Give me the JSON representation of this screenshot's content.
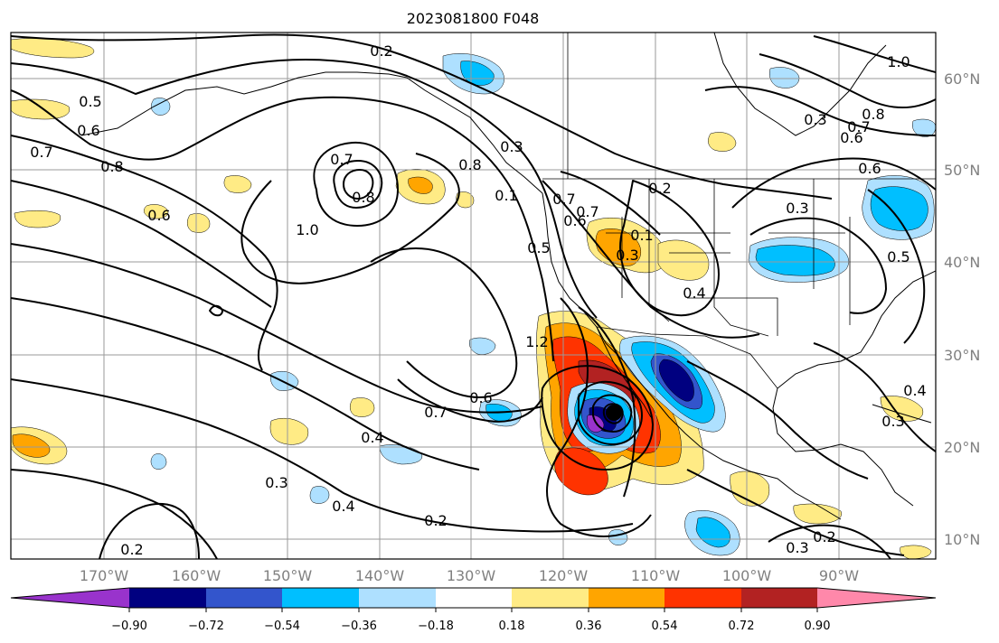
{
  "title": "2023081800 F048",
  "map": {
    "lon_range": [
      -180,
      -80
    ],
    "lat_range": [
      8,
      66
    ],
    "lon_labels": [
      "170°W",
      "160°W",
      "150°W",
      "140°W",
      "130°W",
      "120°W",
      "110°W",
      "100°W",
      "90°W"
    ],
    "lat_labels": [
      "60°N",
      "50°N",
      "40°N",
      "30°N",
      "20°N",
      "10°N"
    ],
    "grid": true,
    "storm_center": {
      "lon": -115,
      "lat": 23.5
    }
  },
  "contour_labels": [
    "0.2",
    "0.7",
    "0.5",
    "0.6",
    "0.8",
    "0.6",
    "0.7",
    "0.8",
    "1.0",
    "0.8",
    "0.3",
    "0.1",
    "0.5",
    "0.7",
    "0.6",
    "0.7",
    "0.2",
    "0.1",
    "0.3",
    "0.4",
    "0.3",
    "0.6",
    "0.7",
    "0.8",
    "0.6",
    "0.5",
    "0.4",
    "0.3",
    "1.2",
    "0.7",
    "0.6",
    "0.4",
    "0.4",
    "0.2",
    "0.3",
    "0.2",
    "0.3",
    "0.2",
    "0.3",
    "1.0"
  ],
  "colorbar": {
    "colors": [
      "#9933cc",
      "#000080",
      "#3355cc",
      "#00bfff",
      "#aee0ff",
      "#ffffff",
      "#ffeb85",
      "#ffa500",
      "#ff3300",
      "#b22222",
      "#ff88aa"
    ],
    "ticks": [
      "−0.90",
      "−0.72",
      "−0.54",
      "−0.36",
      "−0.18",
      "0.18",
      "0.36",
      "0.54",
      "0.72",
      "0.90"
    ],
    "extend": "both"
  }
}
